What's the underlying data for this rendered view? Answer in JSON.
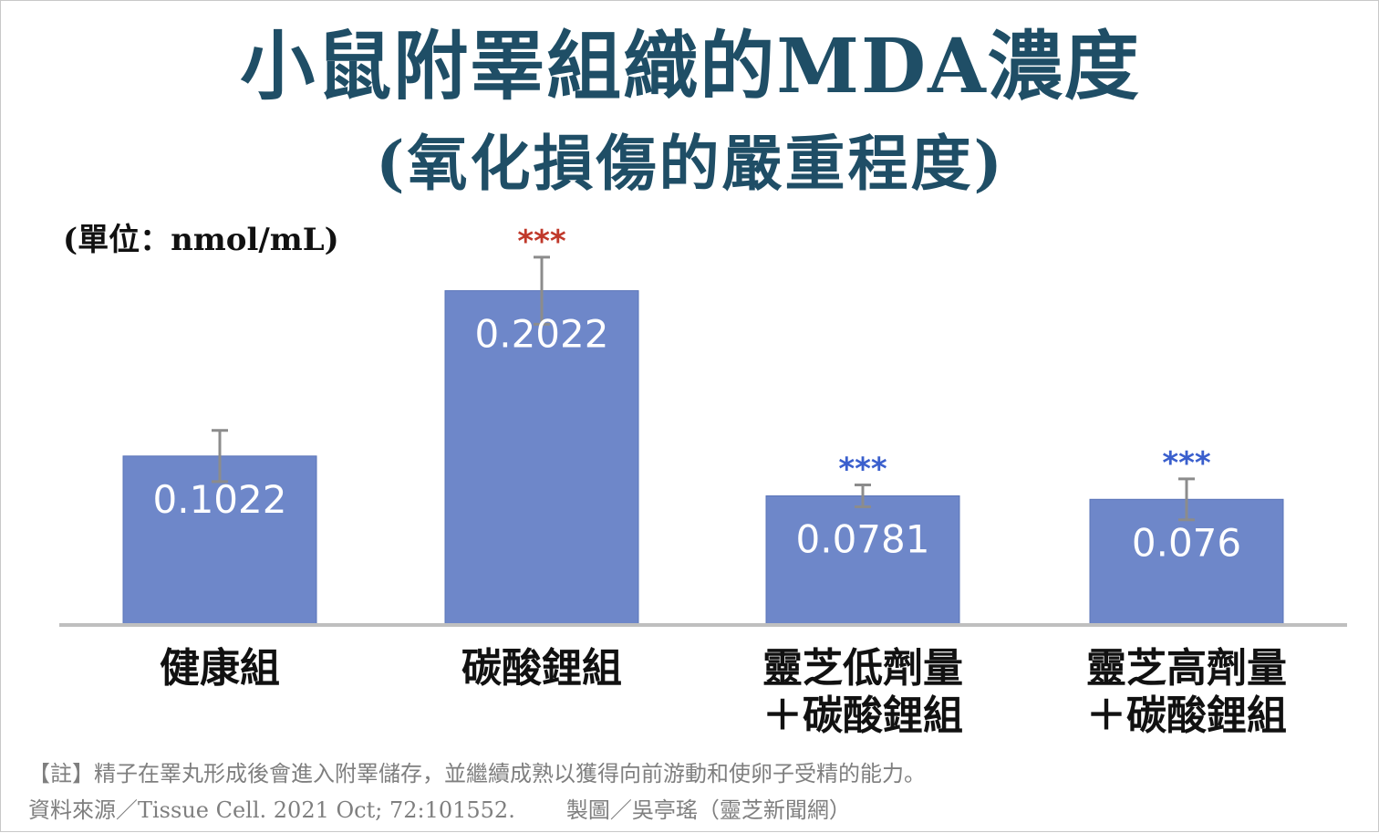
{
  "title": "小鼠附睪組織的MDA濃度",
  "subtitle": "(氧化損傷的嚴重程度)",
  "unit_label": "(單位：nmol/mL)",
  "chart_data": {
    "type": "bar",
    "title": "小鼠附睪組織的MDA濃度",
    "subtitle": "(氧化損傷的嚴重程度)",
    "ylabel": "(單位：nmol/mL)",
    "xlabel": "",
    "ylim": [
      0,
      0.26
    ],
    "grid": false,
    "categories": [
      [
        "健康組"
      ],
      [
        "碳酸鋰組"
      ],
      [
        "靈芝低劑量",
        "＋碳酸鋰組"
      ],
      [
        "靈芝高劑量",
        "＋碳酸鋰組"
      ]
    ],
    "values": [
      0.1022,
      0.2022,
      0.0781,
      0.076
    ],
    "value_labels": [
      "0.1022",
      "0.2022",
      "0.0781",
      "0.076"
    ],
    "error": [
      0.0155,
      0.0203,
      0.0066,
      0.0124
    ],
    "significance": [
      "",
      "***",
      "***",
      "***"
    ],
    "significance_colors": [
      "#c0392b",
      "#c0392b",
      "#3a5fcd",
      "#3a5fcd"
    ],
    "bar_color": "#6e87c9",
    "axis_color": "#bfbfbf",
    "errorbar_color": "#8c8c8c"
  },
  "footer": {
    "note": "【註】精子在睪丸形成後會進入附睪儲存，並繼續成熟以獲得向前游動和使卵子受精的能力。",
    "source": "資料來源／Tissue Cell. 2021 Oct; 72:101552.",
    "credit": "製圖／吳亭瑤（靈芝新聞網）"
  }
}
